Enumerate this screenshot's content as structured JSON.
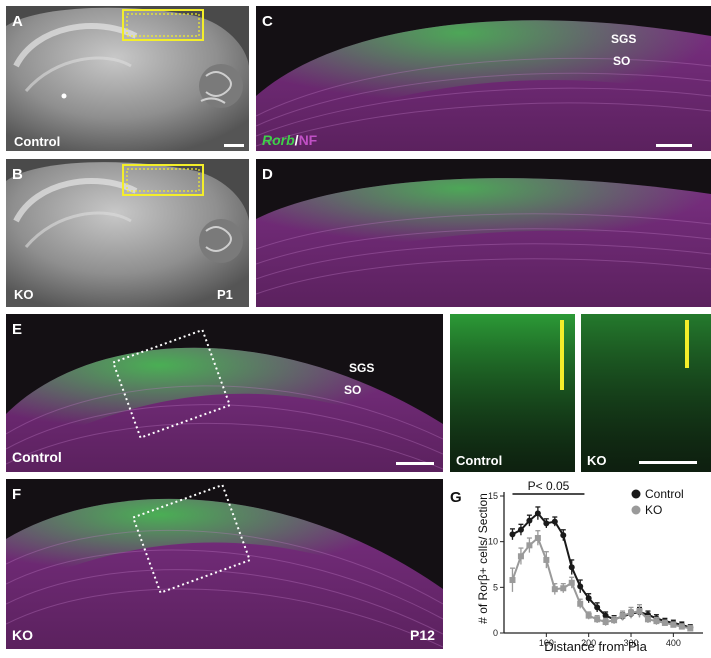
{
  "panels": {
    "A": {
      "label": "A",
      "caption": "Control"
    },
    "B": {
      "label": "B",
      "caption": "KO",
      "age": "P1"
    },
    "C": {
      "label": "C",
      "layer1": "SGS",
      "layer2": "SO",
      "stain_green": "Rorb",
      "stain_sep": "/",
      "stain_magenta": "NF"
    },
    "D": {
      "label": "D"
    },
    "E": {
      "label": "E",
      "caption": "Control",
      "layer1": "SGS",
      "layer2": "SO"
    },
    "E_inset1": {
      "caption": "Control"
    },
    "E_inset2": {
      "caption": "KO"
    },
    "F": {
      "label": "F",
      "caption": "KO",
      "age": "P12"
    },
    "G": {
      "label": "G"
    }
  },
  "colors": {
    "green": "#34c44a",
    "magenta": "#a23aa3",
    "yellow": "#f3ee2a",
    "control": "#1a1a1a",
    "ko": "#9a9a9a"
  },
  "chart_data": {
    "type": "line",
    "xlabel": "Distance from Pia",
    "ylabel": "# of Rorβ+ cells/ Section",
    "xticks": [
      100,
      200,
      300,
      400
    ],
    "yticks": [
      0,
      5,
      10,
      15
    ],
    "xlim": [
      0,
      470
    ],
    "ylim": [
      0,
      15
    ],
    "annotation": "P< 0.05",
    "legend_position": "top-right",
    "series": [
      {
        "name": "Control",
        "x": [
          20,
          40,
          60,
          80,
          100,
          120,
          140,
          160,
          180,
          200,
          220,
          240,
          260,
          280,
          300,
          320,
          340,
          360,
          380,
          400,
          420,
          440
        ],
        "y": [
          10.8,
          11.3,
          12.3,
          13.1,
          12.0,
          12.2,
          10.7,
          7.2,
          5.1,
          3.8,
          2.8,
          1.9,
          1.5,
          1.8,
          2.1,
          2.3,
          2.0,
          1.6,
          1.3,
          1.1,
          0.9,
          0.6
        ],
        "err": [
          0.6,
          0.6,
          0.6,
          0.7,
          0.5,
          0.5,
          0.6,
          0.8,
          0.7,
          0.5,
          0.5,
          0.4,
          0.4,
          0.4,
          0.4,
          0.5,
          0.4,
          0.4,
          0.3,
          0.3,
          0.3,
          0.3
        ]
      },
      {
        "name": "KO",
        "x": [
          20,
          40,
          60,
          80,
          100,
          120,
          140,
          160,
          180,
          200,
          220,
          240,
          260,
          280,
          300,
          320,
          340,
          360,
          380,
          400,
          420,
          440
        ],
        "y": [
          5.8,
          8.4,
          9.6,
          10.4,
          8.0,
          4.8,
          4.9,
          5.5,
          3.2,
          1.9,
          1.5,
          1.2,
          1.4,
          1.9,
          2.2,
          2.4,
          1.5,
          1.3,
          1.1,
          0.9,
          0.7,
          0.5
        ],
        "err": [
          1.3,
          0.9,
          0.8,
          0.8,
          0.9,
          0.6,
          0.5,
          0.6,
          0.5,
          0.4,
          0.4,
          0.4,
          0.4,
          0.5,
          0.6,
          0.7,
          0.4,
          0.4,
          0.3,
          0.3,
          0.3,
          0.3
        ]
      }
    ]
  }
}
